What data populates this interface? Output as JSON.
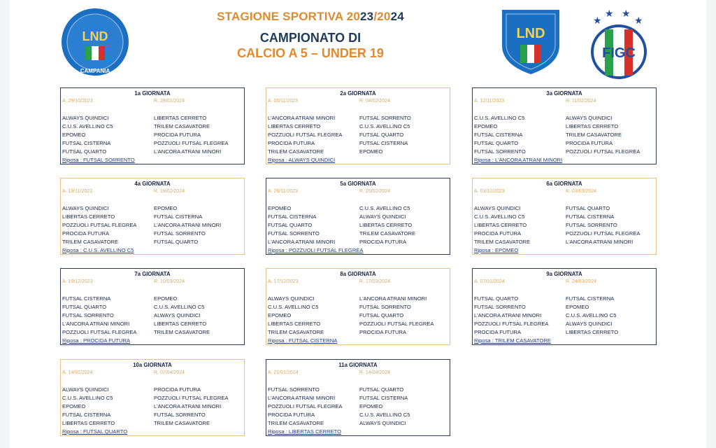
{
  "header": {
    "season_parts": [
      "STAGIONE SPORTIVA 20",
      "23",
      "/20",
      "24"
    ],
    "line2": "CAMPIONATO DI",
    "line3": "CALCIO A 5 – UNDER 19",
    "logo_left": "LND CAMPANIA",
    "logo_mid": "LND",
    "logo_right": "FIGC"
  },
  "colors": {
    "navy": "#1f3b57",
    "orange": "#e08a2c",
    "blue": "#1b6fc0"
  },
  "giornate": [
    {
      "title": "1a GIORNATA",
      "andata": "A. 29/10/2023",
      "ritorno": "R. 28/01/2024",
      "style": "navy",
      "matches": [
        [
          "ALWAYS QUINDICI",
          "LIBERTAS CERRETO"
        ],
        [
          "C.U.S. AVELLINO C5",
          "TRILEM CASAVATORE"
        ],
        [
          "EPOMEO",
          "PROCIDA FUTURA"
        ],
        [
          "FUTSAL CISTERNA",
          "POZZUOLI FUTSAL FLEGREA"
        ],
        [
          "FUTSAL QUARTO",
          "L'ANCORA ATRANI MINORI"
        ]
      ],
      "riposo": "Riposa : FUTSAL SORRENTO"
    },
    {
      "title": "2a GIORNATA",
      "andata": "A. 05/11/2023",
      "ritorno": "R. 04/02/2024",
      "style": "orange",
      "matches": [
        [
          "L'ANCORA ATRANI MINORI",
          "FUTSAL SORRENTO"
        ],
        [
          "LIBERTAS CERRETO",
          "C.U.S. AVELLINO C5"
        ],
        [
          "POZZUOLI FUTSAL FLEGREA",
          "FUTSAL QUARTO"
        ],
        [
          "PROCIDA FUTURA",
          "FUTSAL CISTERNA"
        ],
        [
          "TRILEM CASAVATORE",
          "EPOMEO"
        ]
      ],
      "riposo": "Riposa : ALWAYS QUINDICI"
    },
    {
      "title": "3a GIORNATA",
      "andata": "A. 12/11/2023",
      "ritorno": "R. 11/02/2024",
      "style": "navy",
      "matches": [
        [
          "C.U.S. AVELLINO C5",
          "ALWAYS QUINDICI"
        ],
        [
          "EPOMEO",
          "LIBERTAS CERRETO"
        ],
        [
          "FUTSAL CISTERNA",
          "TRILEM CASAVATORE"
        ],
        [
          "FUTSAL QUARTO",
          "PROCIDA FUTURA"
        ],
        [
          "FUTSAL SORRENTO",
          "POZZUOLI FUTSAL FLEGREA"
        ]
      ],
      "riposo": "Riposa : L'ANCORA ATRANI MINORI"
    },
    {
      "title": "4a GIORNATA",
      "andata": "A. 19/11/2023",
      "ritorno": "R. 18/02/2024",
      "style": "orange",
      "matches": [
        [
          "ALWAYS QUINDICI",
          "EPOMEO"
        ],
        [
          "LIBERTAS CERRETO",
          "FUTSAL CISTERNA"
        ],
        [
          "POZZUOLI FUTSAL FLEGREA",
          "L'ANCORA ATRANI MINORI"
        ],
        [
          "PROCIDA FUTURA",
          "FUTSAL SORRENTO"
        ],
        [
          "TRILEM CASAVATORE",
          "FUTSAL QUARTO"
        ]
      ],
      "riposo": "Riposa : C.U.S. AVELLINO C5"
    },
    {
      "title": "5a GIORNATA",
      "andata": "A. 26/11/2023",
      "ritorno": "R. 25/02/2024",
      "style": "navy",
      "matches": [
        [
          "EPOMEO",
          "C.U.S. AVELLINO C5"
        ],
        [
          "FUTSAL CISTERNA",
          "ALWAYS QUINDICI"
        ],
        [
          "FUTSAL QUARTO",
          "LIBERTAS CERRETO"
        ],
        [
          "FUTSAL SORRENTO",
          "TRILEM CASAVATORE"
        ],
        [
          "L'ANCORA ATRANI MINORI",
          "PROCIDA FUTURA"
        ]
      ],
      "riposo": "Riposa : POZZUOLI FUTSAL FLEGREA"
    },
    {
      "title": "6a GIORNATA",
      "andata": "A. 03/12/2023",
      "ritorno": "R. 03/03/2024",
      "style": "orange",
      "matches": [
        [
          "ALWAYS QUINDICI",
          "FUTSAL QUARTO"
        ],
        [
          "C.U.S. AVELLINO C5",
          "FUTSAL CISTERNA"
        ],
        [
          "LIBERTAS CERRETO",
          "FUTSAL SORRENTO"
        ],
        [
          "PROCIDA FUTURA",
          "POZZUOLI FUTSAL FLEGREA"
        ],
        [
          "TRILEM CASAVATORE",
          "L'ANCORA ATRANI MINORI"
        ]
      ],
      "riposo": "Riposa : EPOMEO"
    },
    {
      "title": "7a GIORNATA",
      "andata": "A. 10/12/2023",
      "ritorno": "R. 10/03/2024",
      "style": "navy",
      "matches": [
        [
          "FUTSAL CISTERNA",
          "EPOMEO"
        ],
        [
          "FUTSAL QUARTO",
          "C.U.S. AVELLINO C5"
        ],
        [
          "FUTSAL SORRENTO",
          "ALWAYS QUINDICI"
        ],
        [
          "L'ANCORA ATRANI MINORI",
          "LIBERTAS CERRETO"
        ],
        [
          "POZZUOLI FUTSAL FLEGREA",
          "TRILEM CASAVATORE"
        ]
      ],
      "riposo": "Riposa : PROCIDA FUTURA"
    },
    {
      "title": "8a GIORNATA",
      "andata": "A. 17/12/2023",
      "ritorno": "R. 17/03/2024",
      "style": "orange",
      "matches": [
        [
          "ALWAYS QUINDICI",
          "L'ANCORA ATRANI MINORI"
        ],
        [
          "C.U.S. AVELLINO C5",
          "FUTSAL SORRENTO"
        ],
        [
          "EPOMEO",
          "FUTSAL QUARTO"
        ],
        [
          "LIBERTAS CERRETO",
          "POZZUOLI FUTSAL FLEGREA"
        ],
        [
          "TRILEM CASAVATORE",
          "PROCIDA FUTURA"
        ]
      ],
      "riposo": "Riposa : FUTSAL CISTERNA"
    },
    {
      "title": "9a GIORNATA",
      "andata": "A. 07/01/2024",
      "ritorno": "R. 24/03/2024",
      "style": "navy",
      "matches": [
        [
          "FUTSAL QUARTO",
          "FUTSAL CISTERNA"
        ],
        [
          "FUTSAL SORRENTO",
          "EPOMEO"
        ],
        [
          "L'ANCORA ATRANI MINORI",
          "C.U.S. AVELLINO C5"
        ],
        [
          "POZZUOLI FUTSAL FLEGREA",
          "ALWAYS QUINDICI"
        ],
        [
          "PROCIDA FUTURA",
          "LIBERTAS CERRETO"
        ]
      ],
      "riposo": "Riposa : TRILEM CASAVATORE"
    },
    {
      "title": "10a GIORNATA",
      "andata": "A. 14/01/2024",
      "ritorno": "R. 07/04/2024",
      "style": "orange",
      "matches": [
        [
          "ALWAYS QUINDICI",
          "PROCIDA FUTURA"
        ],
        [
          "C.U.S. AVELLINO C5",
          "POZZUOLI FUTSAL FLEGREA"
        ],
        [
          "EPOMEO",
          "L'ANCORA ATRANI MINORI"
        ],
        [
          "FUTSAL CISTERNA",
          "FUTSAL SORRENTO"
        ],
        [
          "LIBERTAS CERRETO",
          "TRILEM CASAVATORE"
        ]
      ],
      "riposo": "Riposa : FUTSAL QUARTO"
    },
    {
      "title": "11a GIORNATA",
      "andata": "A. 21/01/2024",
      "ritorno": "R. 14/04/2024",
      "style": "navy",
      "matches": [
        [
          "FUTSAL SORRENTO",
          "FUTSAL QUARTO"
        ],
        [
          "L'ANCORA ATRANI MINORI",
          "FUTSAL CISTERNA"
        ],
        [
          "POZZUOLI FUTSAL FLEGREA",
          "EPOMEO"
        ],
        [
          "PROCIDA FUTURA",
          "C.U.S. AVELLINO C5"
        ],
        [
          "TRILEM CASAVATORE",
          "ALWAYS QUINDICI"
        ]
      ],
      "riposo": "Riposa : LIBERTAS CERRETO"
    }
  ]
}
